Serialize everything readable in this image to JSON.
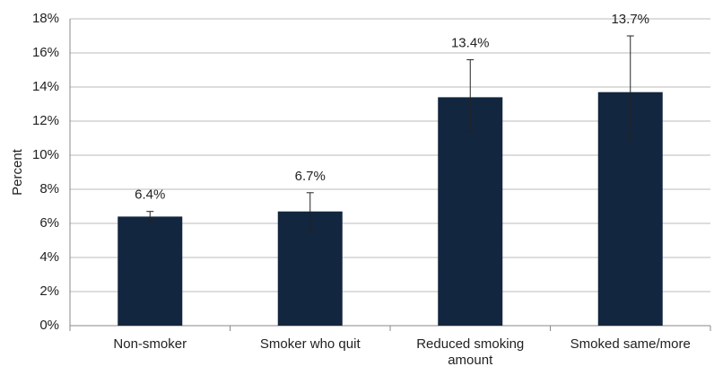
{
  "chart_data": {
    "type": "bar",
    "y_label": "Percent",
    "categories": [
      "Non-smoker",
      "Smoker who quit",
      "Reduced smoking amount",
      "Smoked same/more"
    ],
    "values": [
      6.4,
      6.7,
      13.4,
      13.7
    ],
    "value_labels": [
      "6.4%",
      "6.7%",
      "13.4%",
      "13.7%"
    ],
    "ci_low": [
      6.1,
      5.6,
      11.4,
      11.0
    ],
    "ci_high": [
      6.7,
      7.8,
      15.6,
      17.0
    ],
    "color": "#12263f",
    "ylim": [
      0,
      18
    ],
    "yticks": [
      {
        "value": 0,
        "label": "0%"
      },
      {
        "value": 2,
        "label": "2%"
      },
      {
        "value": 4,
        "label": "4%"
      },
      {
        "value": 6,
        "label": "6%"
      },
      {
        "value": 8,
        "label": "8%"
      },
      {
        "value": 10,
        "label": "10%"
      },
      {
        "value": 12,
        "label": "12%"
      },
      {
        "value": 14,
        "label": "14%"
      },
      {
        "value": 16,
        "label": "16%"
      },
      {
        "value": 18,
        "label": "18%"
      }
    ],
    "grid": true
  }
}
